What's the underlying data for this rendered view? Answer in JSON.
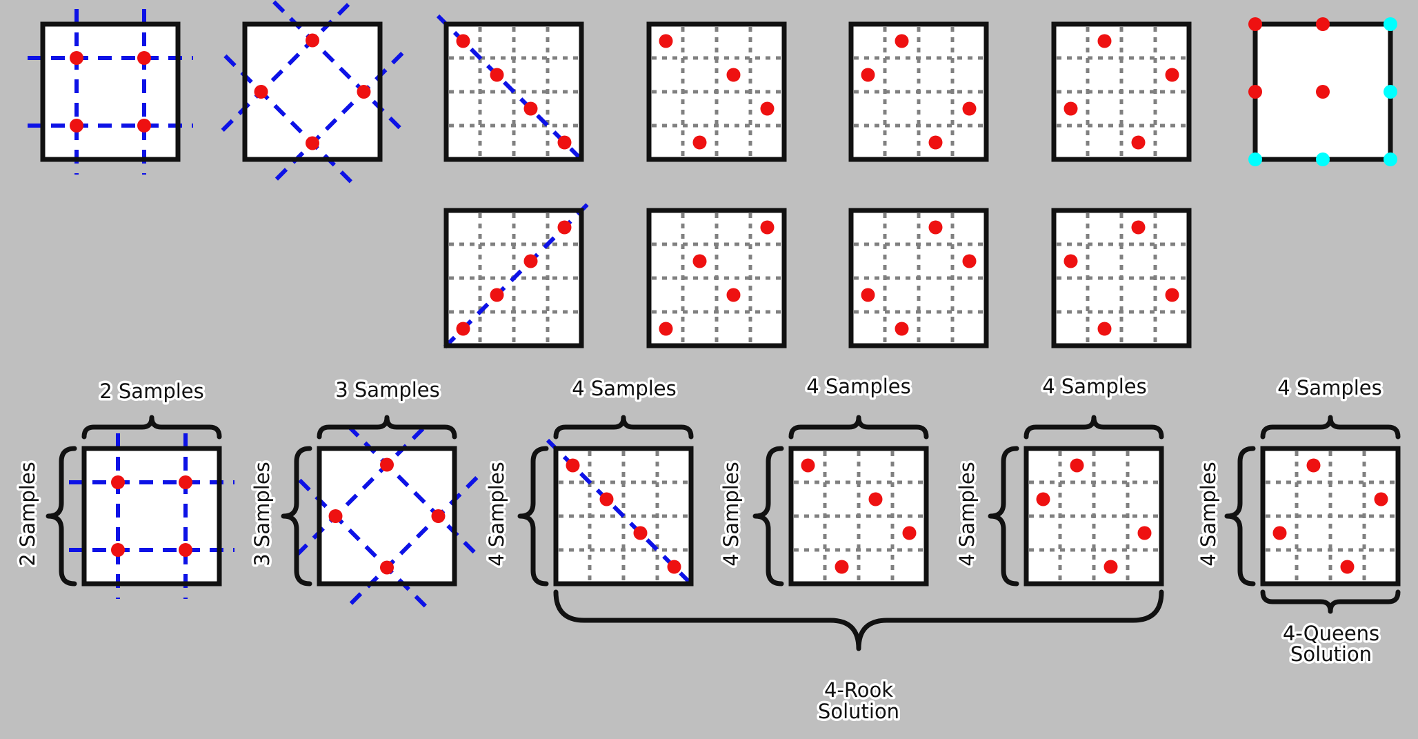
{
  "colors": {
    "background": "#bfbfbf",
    "cell": "#ffffff",
    "frame": "#111111",
    "sample": "#ee1111",
    "grid_line": "#0d12e6",
    "sub_grid": "#808080",
    "alt_sample": "#00ffff"
  },
  "panels": {
    "row1": [
      "grid-2x2",
      "rotated-3",
      "diag-4",
      "rook-4a",
      "rook-4b",
      "rook-4c",
      "corner-cyan"
    ],
    "row2": [
      "anti-diag-4",
      "rook-4d",
      "rook-4e",
      "rook-4f"
    ],
    "row3": [
      "grid-2x2",
      "rotated-3",
      "diag-4",
      "rook-4a",
      "rook-4b",
      "rook-4c"
    ]
  },
  "labels": {
    "top_2": "2 Samples",
    "side_2": "2 Samples",
    "top_3": "3 Samples",
    "side_3": "3 Samples",
    "top_4a": "4 Samples",
    "side_4a": "4 Samples",
    "top_4b": "4 Samples",
    "side_4b": "4 Samples",
    "top_4c": "4 Samples",
    "side_4c": "4 Samples",
    "top_4d": "4 Samples",
    "side_4d": "4 Samples",
    "rook_line1": "4-Rook",
    "rook_line2": "Solution",
    "queens_line1": "4-Queens",
    "queens_line2": "Solution"
  }
}
